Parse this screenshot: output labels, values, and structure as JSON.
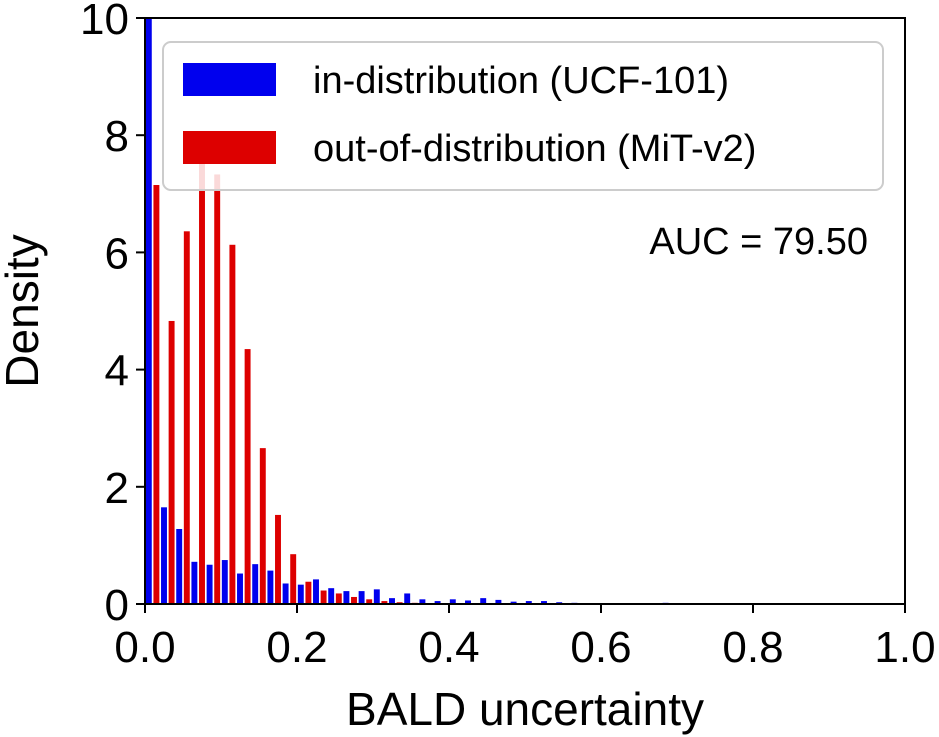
{
  "chart_data": {
    "type": "bar",
    "xlabel": "BALD uncertainty",
    "ylabel": "Density",
    "xlim": [
      0.0,
      1.0
    ],
    "ylim": [
      0,
      10
    ],
    "xticks": [
      "0.0",
      "0.2",
      "0.4",
      "0.6",
      "0.8",
      "1.0"
    ],
    "yticks": [
      "0",
      "2",
      "4",
      "6",
      "8",
      "10"
    ],
    "bin_width": 0.02,
    "x": [
      0.01,
      0.03,
      0.05,
      0.07,
      0.09,
      0.11,
      0.13,
      0.15,
      0.17,
      0.19,
      0.21,
      0.23,
      0.25,
      0.27,
      0.29,
      0.31,
      0.33,
      0.35,
      0.37,
      0.39,
      0.41,
      0.43,
      0.45,
      0.47,
      0.49,
      0.51,
      0.53,
      0.55,
      0.57,
      0.59,
      0.61,
      0.63,
      0.65,
      0.67,
      0.69
    ],
    "series": [
      {
        "name": "in-distribution (UCF-101)",
        "color": "#0000ee",
        "values": [
          10.0,
          1.65,
          1.28,
          0.72,
          0.67,
          0.75,
          0.52,
          0.68,
          0.57,
          0.35,
          0.33,
          0.42,
          0.27,
          0.22,
          0.22,
          0.25,
          0.1,
          0.18,
          0.08,
          0.05,
          0.08,
          0.06,
          0.1,
          0.07,
          0.04,
          0.05,
          0.05,
          0.03,
          0.02,
          0.01,
          0.01,
          0.01,
          0.01,
          0.01,
          0.02
        ]
      },
      {
        "name": "out-of-distribution (MiT-v2)",
        "color": "#dd0000",
        "values": [
          7.15,
          4.83,
          6.36,
          7.58,
          7.33,
          6.13,
          4.35,
          2.66,
          1.52,
          0.85,
          0.38,
          0.23,
          0.18,
          0.12,
          0.08,
          0.05,
          0.03,
          0.02,
          0.01,
          0.01,
          0.01,
          0.01,
          0.0,
          0.0,
          0.0,
          0.0,
          0.0,
          0.0,
          0.0,
          0.0,
          0.0,
          0.0,
          0.0,
          0.0,
          0.0
        ]
      }
    ],
    "legend_position": "top",
    "annotation": "AUC = 79.50"
  }
}
